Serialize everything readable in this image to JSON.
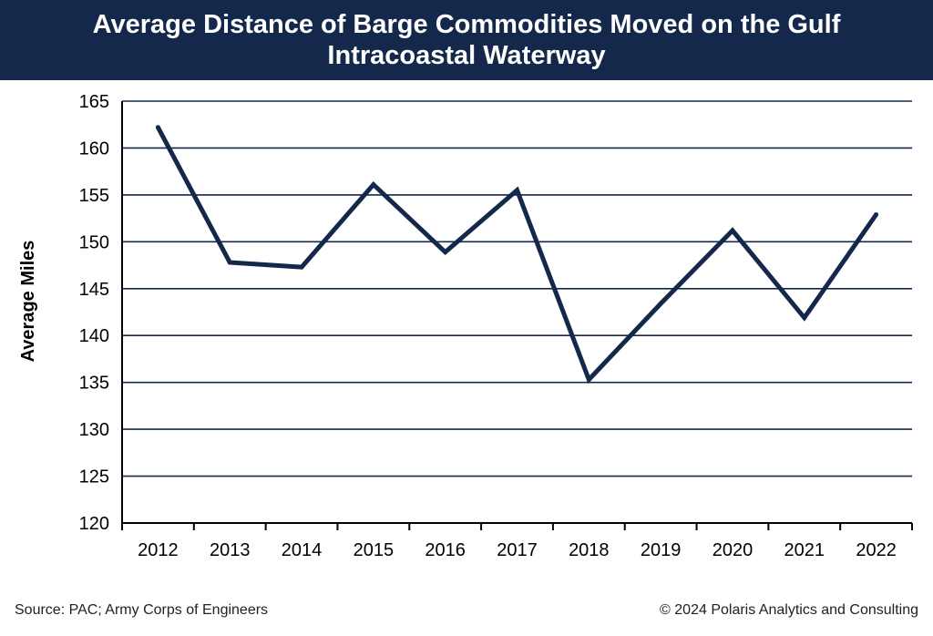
{
  "chart_data": {
    "type": "line",
    "title_lines": [
      "Average Distance of Barge Commodities Moved on the Gulf",
      "Intracoastal Waterway"
    ],
    "xlabel": "",
    "ylabel": "Average Miles",
    "categories": [
      "2012",
      "2013",
      "2014",
      "2015",
      "2016",
      "2017",
      "2018",
      "2019",
      "2020",
      "2021",
      "2022"
    ],
    "series": [
      {
        "name": "Average Miles",
        "values": [
          162.2,
          147.8,
          147.3,
          156.1,
          148.9,
          155.5,
          135.3,
          143.4,
          151.2,
          141.9,
          152.9
        ]
      }
    ],
    "ylim": [
      120,
      165
    ],
    "yticks": [
      120,
      125,
      130,
      135,
      140,
      145,
      150,
      155,
      160,
      165
    ],
    "grid": true,
    "legend": "none",
    "line_color": "#13284a",
    "grid_color": "#13284a"
  },
  "footer": {
    "source": "Source:  PAC; Army Corps of Engineers",
    "copyright": "© 2024 Polaris Analytics and Consulting"
  },
  "colors": {
    "header_bg": "#13284a",
    "header_text": "#ffffff"
  }
}
